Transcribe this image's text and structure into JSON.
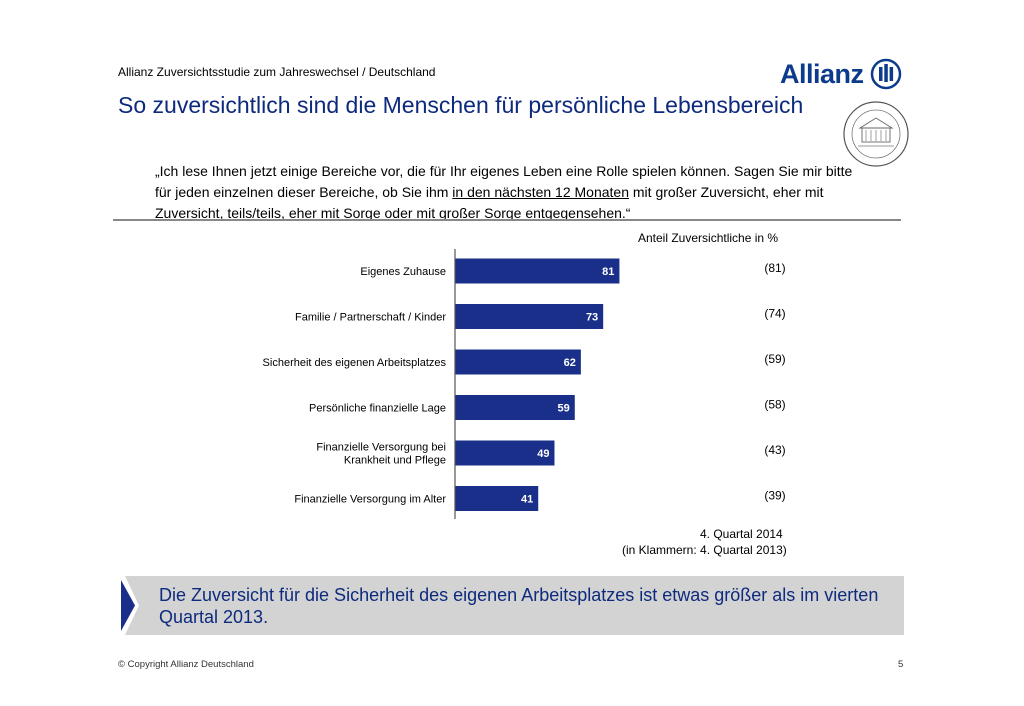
{
  "header": {
    "study": "Allianz Zuversichtsstudie zum Jahreswechsel / Deutschland",
    "title": "So zuversichtlich sind die Menschen für persönliche Lebensbereich",
    "logo_text": "Allianz"
  },
  "question": {
    "part1": "„Ich lese Ihnen jetzt einige Bereiche vor, die für Ihr eigenes Leben eine Rolle spielen können. Sagen Sie mir bitte für jeden einzelnen dieser Bereiche, ob Sie ihm ",
    "underlined": "in den nächsten 12 Monaten",
    "part2": " mit großer Zuversicht, eher mit Zuversicht, teils/teils, eher mit Sorge oder mit großer Sorge entgegensehen.“"
  },
  "chart_data": {
    "type": "bar",
    "orientation": "horizontal",
    "unit_label": "Anteil Zuversichtliche in %",
    "categories": [
      "Eigenes Zuhause",
      "Familie / Partnerschaft / Kinder",
      "Sicherheit des eigenen Arbeitsplatzes",
      "Persönliche finanzielle Lage",
      "Finanzielle Versorgung bei|Krankheit und Pflege",
      "Finanzielle Versorgung im Alter"
    ],
    "series": [
      {
        "name": "4. Quartal 2014",
        "values": [
          81,
          73,
          62,
          59,
          49,
          41
        ]
      },
      {
        "name": "4. Quartal 2013",
        "values": [
          81,
          74,
          59,
          58,
          43,
          39
        ]
      }
    ],
    "prev_labels": [
      "(81)",
      "(74)",
      "(59)",
      "(58)",
      "(43)",
      "(39)"
    ],
    "bar_color": "#1a2f8a",
    "xlim": [
      0,
      100
    ],
    "notes": [
      "4. Quartal 2014",
      "(in Klammern: 4. Quartal 2013)"
    ]
  },
  "banner": {
    "text": "Die Zuversicht für die Sicherheit des eigenen Arbeitsplatzes ist etwas größer als im vierten Quartal 2013."
  },
  "footer": {
    "copyright": "© Copyright Allianz Deutschland",
    "page": "5"
  }
}
